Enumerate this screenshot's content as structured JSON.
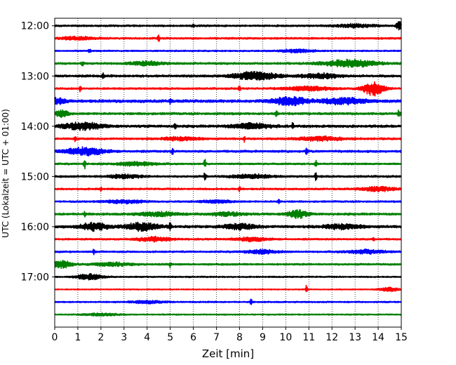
{
  "chart_data": {
    "type": "line",
    "subtype": "seismogram-helicorder",
    "xlabel": "Zeit  [min]",
    "ylabel": "UTC (Lokalzeit = UTC + 01:00)",
    "xlim": [
      0,
      15
    ],
    "x_ticks": [
      "0",
      "1",
      "2",
      "3",
      "4",
      "5",
      "6",
      "7",
      "8",
      "9",
      "10",
      "11",
      "12",
      "13",
      "14",
      "15"
    ],
    "x_tick_values": [
      0,
      1,
      2,
      3,
      4,
      5,
      6,
      7,
      8,
      9,
      10,
      11,
      12,
      13,
      14,
      15
    ],
    "y_ticks": [
      "12:00",
      "13:00",
      "14:00",
      "15:00",
      "16:00",
      "17:00"
    ],
    "y_tick_minutes": [
      720,
      780,
      840,
      900,
      960,
      1020
    ],
    "ylim_minutes": [
      711,
      1080
    ],
    "trace_interval_minutes": 15,
    "vertical_grid": "dotted",
    "color_cycle": [
      "#000000",
      "#ff0000",
      "#0000ff",
      "#008000"
    ],
    "traces": [
      {
        "start": "12:00",
        "color": "#000000",
        "base_amp": 0.16,
        "bursts": [
          [
            14.9,
            0.7,
            0.08
          ],
          [
            13.0,
            0.25,
            0.6
          ],
          [
            6.0,
            0.35,
            0.03
          ]
        ]
      },
      {
        "start": "12:15",
        "color": "#ff0000",
        "base_amp": 0.16,
        "bursts": [
          [
            4.5,
            0.6,
            0.03
          ],
          [
            1.0,
            0.25,
            0.5
          ]
        ]
      },
      {
        "start": "12:30",
        "color": "#0000ff",
        "base_amp": 0.13,
        "bursts": [
          [
            1.5,
            0.3,
            0.05
          ],
          [
            10.5,
            0.25,
            0.5
          ]
        ]
      },
      {
        "start": "12:45",
        "color": "#008000",
        "base_amp": 0.18,
        "bursts": [
          [
            12.8,
            0.55,
            0.8
          ],
          [
            4.0,
            0.3,
            0.5
          ],
          [
            1.2,
            0.35,
            0.04
          ]
        ]
      },
      {
        "start": "13:00",
        "color": "#000000",
        "base_amp": 0.2,
        "bursts": [
          [
            8.7,
            0.6,
            0.7
          ],
          [
            2.1,
            0.5,
            0.03
          ],
          [
            11.5,
            0.35,
            0.6
          ]
        ]
      },
      {
        "start": "13:15",
        "color": "#ff0000",
        "base_amp": 0.16,
        "bursts": [
          [
            13.8,
            1.15,
            0.3
          ],
          [
            8.0,
            0.5,
            0.03
          ],
          [
            1.1,
            0.45,
            0.03
          ],
          [
            11.0,
            0.3,
            0.7
          ]
        ]
      },
      {
        "start": "13:30",
        "color": "#0000ff",
        "base_amp": 0.25,
        "bursts": [
          [
            10.2,
            0.65,
            0.5
          ],
          [
            12.5,
            0.5,
            0.6
          ],
          [
            5.0,
            0.5,
            0.03
          ],
          [
            0.1,
            0.45,
            0.25
          ]
        ]
      },
      {
        "start": "13:45",
        "color": "#008000",
        "base_amp": 0.2,
        "bursts": [
          [
            0.3,
            0.5,
            0.2
          ],
          [
            9.6,
            0.45,
            0.03
          ],
          [
            14.9,
            0.45,
            0.05
          ]
        ]
      },
      {
        "start": "14:00",
        "color": "#000000",
        "base_amp": 0.22,
        "bursts": [
          [
            1.2,
            0.55,
            0.6
          ],
          [
            5.2,
            0.7,
            0.03
          ],
          [
            8.5,
            0.4,
            0.6
          ],
          [
            10.3,
            0.45,
            0.03
          ]
        ]
      },
      {
        "start": "14:15",
        "color": "#ff0000",
        "base_amp": 0.17,
        "bursts": [
          [
            0.9,
            0.5,
            0.03
          ],
          [
            8.2,
            0.45,
            0.03
          ],
          [
            11.5,
            0.3,
            0.7
          ],
          [
            5.5,
            0.25,
            0.6
          ]
        ]
      },
      {
        "start": "14:30",
        "color": "#0000ff",
        "base_amp": 0.19,
        "bursts": [
          [
            1.3,
            0.6,
            0.6
          ],
          [
            5.1,
            0.5,
            0.03
          ],
          [
            10.9,
            0.55,
            0.03
          ]
        ]
      },
      {
        "start": "14:45",
        "color": "#008000",
        "base_amp": 0.16,
        "bursts": [
          [
            1.3,
            0.75,
            0.03
          ],
          [
            6.5,
            0.7,
            0.03
          ],
          [
            11.3,
            0.55,
            0.03
          ],
          [
            3.5,
            0.3,
            0.6
          ]
        ]
      },
      {
        "start": "15:00",
        "color": "#000000",
        "base_amp": 0.17,
        "bursts": [
          [
            6.5,
            0.8,
            0.03
          ],
          [
            11.3,
            0.7,
            0.03
          ],
          [
            3.0,
            0.3,
            0.5
          ],
          [
            8.5,
            0.3,
            0.6
          ]
        ]
      },
      {
        "start": "15:15",
        "color": "#ff0000",
        "base_amp": 0.16,
        "bursts": [
          [
            8.0,
            0.45,
            0.03
          ],
          [
            14.0,
            0.35,
            0.5
          ],
          [
            2.0,
            0.3,
            0.03
          ]
        ]
      },
      {
        "start": "15:30",
        "color": "#0000ff",
        "base_amp": 0.15,
        "bursts": [
          [
            9.7,
            0.6,
            0.03
          ],
          [
            3.0,
            0.25,
            0.6
          ],
          [
            7.0,
            0.2,
            0.5
          ]
        ]
      },
      {
        "start": "15:45",
        "color": "#008000",
        "base_amp": 0.2,
        "bursts": [
          [
            10.5,
            0.6,
            0.3
          ],
          [
            4.5,
            0.3,
            0.6
          ],
          [
            1.3,
            0.4,
            0.03
          ],
          [
            7.5,
            0.25,
            0.5
          ]
        ]
      },
      {
        "start": "16:00",
        "color": "#000000",
        "base_amp": 0.22,
        "bursts": [
          [
            1.7,
            0.6,
            0.4
          ],
          [
            3.8,
            0.6,
            0.5
          ],
          [
            5.0,
            0.7,
            0.03
          ],
          [
            8.0,
            0.4,
            0.5
          ],
          [
            12.5,
            0.35,
            0.6
          ]
        ]
      },
      {
        "start": "16:15",
        "color": "#ff0000",
        "base_amp": 0.15,
        "bursts": [
          [
            4.3,
            0.35,
            0.5
          ],
          [
            8.5,
            0.3,
            0.5
          ],
          [
            13.8,
            0.45,
            0.03
          ]
        ]
      },
      {
        "start": "16:30",
        "color": "#0000ff",
        "base_amp": 0.15,
        "bursts": [
          [
            1.7,
            0.45,
            0.03
          ],
          [
            9.0,
            0.3,
            0.5
          ],
          [
            13.5,
            0.3,
            0.6
          ]
        ]
      },
      {
        "start": "16:45",
        "color": "#008000",
        "base_amp": 0.16,
        "bursts": [
          [
            0.3,
            0.6,
            0.3
          ],
          [
            5.0,
            0.45,
            0.03
          ],
          [
            2.5,
            0.25,
            0.6
          ]
        ]
      },
      {
        "start": "17:00",
        "color": "#000000",
        "base_amp": 0.12,
        "bursts": [
          [
            1.5,
            0.45,
            0.4
          ]
        ],
        "end_minute": 15
      },
      {
        "start": "17:15",
        "color": "#ff0000",
        "base_amp": 0.09,
        "bursts": [
          [
            10.9,
            0.75,
            0.03
          ],
          [
            14.5,
            0.3,
            0.3
          ]
        ]
      },
      {
        "start": "17:30",
        "color": "#0000ff",
        "base_amp": 0.13,
        "bursts": [
          [
            8.5,
            0.45,
            0.03
          ],
          [
            4.0,
            0.2,
            0.5
          ]
        ]
      },
      {
        "start": "17:45",
        "color": "#008000",
        "base_amp": 0.11,
        "bursts": [
          [
            2.0,
            0.2,
            0.5
          ]
        ]
      }
    ]
  }
}
